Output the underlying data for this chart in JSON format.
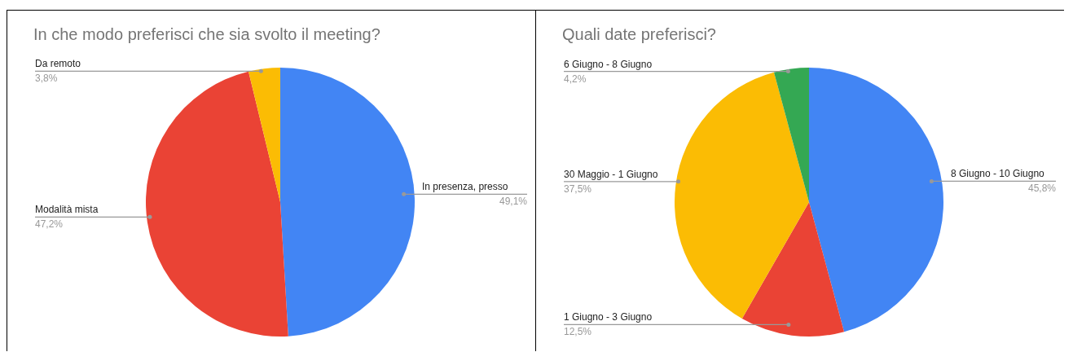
{
  "chart_data": [
    {
      "type": "pie",
      "title": "In che modo preferisci che sia svolto il meeting?",
      "categories": [
        "In presenza, presso",
        "Modalità mista",
        "Da remoto"
      ],
      "values": [
        49.1,
        47.2,
        3.8
      ],
      "value_labels": [
        "49,1%",
        "47,2%",
        "3,8%"
      ],
      "colors": [
        "#4285f4",
        "#ea4335",
        "#fbbc04"
      ],
      "legend": false
    },
    {
      "type": "pie",
      "title": "Quali date preferisci?",
      "categories": [
        "8 Giugno - 10 Giugno",
        "1 Giugno - 3 Giugno",
        "30 Maggio - 1 Giugno",
        "6 Giugno - 8 Giugno"
      ],
      "values": [
        45.8,
        12.5,
        37.5,
        4.2
      ],
      "value_labels": [
        "45,8%",
        "12,5%",
        "37,5%",
        "4,2%"
      ],
      "colors": [
        "#4285f4",
        "#ea4335",
        "#fbbc04",
        "#34a853"
      ],
      "legend": false
    }
  ]
}
